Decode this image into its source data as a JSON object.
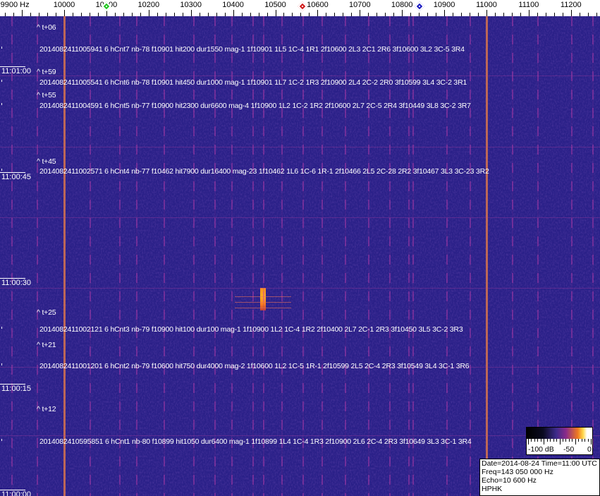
{
  "chart_data": {
    "type": "heatmap",
    "title": "",
    "x_unit_label": "Hz",
    "x_ticks": [
      9900,
      10000,
      10100,
      10200,
      10300,
      10400,
      10500,
      10600,
      10700,
      10800,
      10900,
      11000,
      11100,
      11200
    ],
    "x_tick_labels": [
      "9900 Hz",
      "10000",
      "10100",
      "10200",
      "10300",
      "10400",
      "10500",
      "10600",
      "10700",
      "10800",
      "10900",
      "11000",
      "11100",
      "11200"
    ],
    "y_tick_labels": [
      "11:01:00",
      "11:00:45",
      "11:00:30",
      "11:00:15",
      "11:00:00"
    ],
    "xlim": [
      9850,
      11265
    ],
    "ylim": [
      "11:00:00",
      "11:01:08"
    ],
    "colormap": [
      "#000000",
      "#3c2a8a",
      "#8a2a8a",
      "#f07a20",
      "#ffd84a",
      "#ffffff"
    ],
    "colorbar": {
      "labels": [
        "-100 dB",
        "-50",
        "0"
      ],
      "range_db": [
        -100,
        0
      ]
    },
    "markers": [
      {
        "freq": 10100,
        "color": "#1ec81e"
      },
      {
        "freq": 10565,
        "color": "#d01818"
      },
      {
        "freq": 10842,
        "color": "#1818c0"
      }
    ],
    "carriers": [
      {
        "freq": 10000,
        "color": "#e0784a"
      },
      {
        "freq": 11000,
        "color": "#e0784a"
      }
    ],
    "meteor_echo": {
      "freq": 10465,
      "time": "11:00:27",
      "peak_color": "#ffb020"
    },
    "time_offsets": [
      "^ t+06",
      "^ t+59",
      "^ t+55",
      "^ t+45",
      "^ t+25",
      "^ t+21",
      "^ t+12"
    ],
    "events": [
      "2014082411005941 6 hCnt7 nb-78 f10901 hit200 dur1550 mag-1 1f10901 1L5 1C-4 1R1 2f10600 2L3 2C1 2R6 3f10600 3L2 3C-5 3R4",
      "2014082411005541 6 hCnt6 nb-78 f10901 hit450 dur1000 mag-1 1f10901 1L7 1C-2 1R3 2f10900 2L4 2C-2 2R0 3f10599 3L4 3C-2 3R1",
      "2014082411004591 6 hCnt5 nb-77 f10900 hit2300 dur6600 mag-4 1f10900 1L2 1C-2 1R2 2f10600 2L7 2C-5 2R4 3f10449 3L8 3C-2 3R7",
      "2014082411002571 6 hCnt4 nb-77 f10462 hit7900 dur16400 mag-23 1f10462 1L6 1C-6 1R-1 2f10466 2L5 2C-28 2R2 3f10467 3L3 3C-23 3R2",
      "2014082411002121 6 hCnt3 nb-79 f10900 hit100 dur100 mag-1 1f10900 1L2 1C-4 1R2 2f10400 2L7 2C-1 2R3 3f10450 3L5 3C-2 3R3",
      "2014082411001201 6 hCnt2 nb-79 f10600 hit750 dur4000 mag-2 1f10600 1L2 1C-5 1R-1 2f10599 2L5 2C-4 2R3 3f10549 3L4 3C-1 3R6",
      "2014082410595851 6 hCnt1 nb-80 f10899 hit1050 dur6400 mag-1 1f10899 1L4 1C-4 1R3 2f10900 2L6 2C-4 2R3 3f10649 3L3 3C-1 3R4"
    ]
  },
  "info": {
    "date_time": "Date=2014-08-24 Time=11:00 UTC",
    "freq": "Freq=143 050 000 Hz",
    "echo": "Echo=10 600 Hz",
    "station": "HPHK"
  }
}
